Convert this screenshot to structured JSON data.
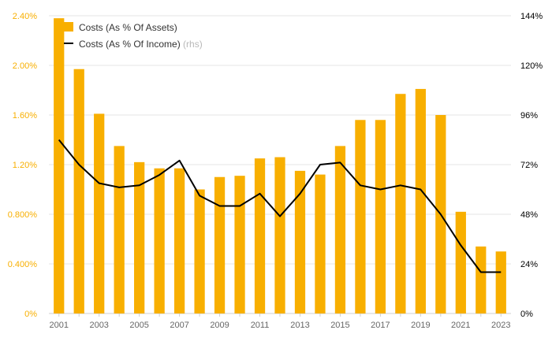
{
  "chart_data": {
    "type": "bar",
    "x": [
      2001,
      2002,
      2003,
      2004,
      2005,
      2006,
      2007,
      2008,
      2009,
      2010,
      2011,
      2012,
      2013,
      2014,
      2015,
      2016,
      2017,
      2018,
      2019,
      2020,
      2021,
      2022,
      2023
    ],
    "x_tick_labels": [
      "2001",
      "2003",
      "2005",
      "2007",
      "2009",
      "2011",
      "2013",
      "2015",
      "2017",
      "2019",
      "2021",
      "2023"
    ],
    "series": [
      {
        "name": "Costs (As % Of Assets)",
        "type": "bar",
        "axis": "left",
        "color": "#F8AF00",
        "values": [
          2.38,
          1.97,
          1.61,
          1.35,
          1.22,
          1.17,
          1.17,
          1.0,
          1.1,
          1.11,
          1.25,
          1.26,
          1.15,
          1.12,
          1.35,
          1.56,
          1.56,
          1.77,
          1.81,
          1.6,
          0.82,
          0.54,
          0.5
        ]
      },
      {
        "name": "Costs (As % Of Income)",
        "name_suffix": "(rhs)",
        "type": "line",
        "axis": "right",
        "color": "#000000",
        "values": [
          84,
          72,
          63,
          61,
          62,
          67,
          74,
          57,
          52,
          52,
          58,
          47,
          58,
          72,
          73,
          62,
          60,
          62,
          60,
          48,
          33,
          20,
          20
        ]
      }
    ],
    "y_left": {
      "lim": [
        0,
        2.4
      ],
      "ticks": [
        0,
        0.4,
        0.8,
        1.2,
        1.6,
        2.0,
        2.4
      ],
      "tick_labels": [
        "0%",
        "0.400%",
        "0.800%",
        "1.20%",
        "1.60%",
        "2.00%",
        "2.40%"
      ],
      "tick_color": "#F8AF00"
    },
    "y_right": {
      "lim": [
        0,
        144
      ],
      "ticks": [
        0,
        24,
        48,
        72,
        96,
        120,
        144
      ],
      "tick_labels": [
        "0%",
        "24%",
        "48%",
        "72%",
        "96%",
        "120%",
        "144%"
      ],
      "tick_color": "#000000"
    },
    "grid": true,
    "legend_position": "top-left"
  }
}
